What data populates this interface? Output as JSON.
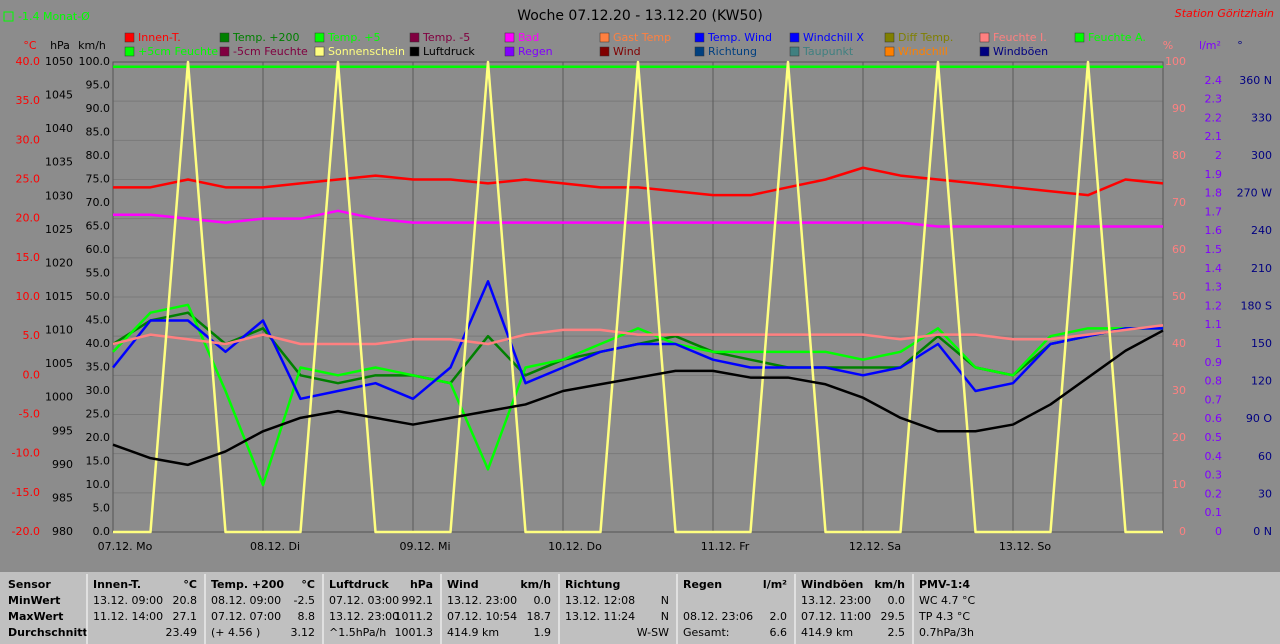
{
  "chart_data": {
    "type": "line",
    "title": "Woche 07.12.20 - 13.12.20 (KW50)",
    "subtitle": "-1.4 Monat-Ø",
    "station": "Station Göritzhain",
    "x": [
      0,
      6,
      12,
      18,
      24,
      30,
      36,
      42,
      48,
      54,
      60,
      66,
      72,
      78,
      84,
      90,
      96,
      102,
      108,
      114,
      120,
      126,
      132,
      138,
      144,
      150,
      156,
      162,
      168
    ],
    "xlim": [
      0,
      168
    ],
    "xticks": [
      {
        "value": 0,
        "label": "07.12. Mo"
      },
      {
        "value": 24,
        "label": "08.12. Di"
      },
      {
        "value": 48,
        "label": "09.12. Mi"
      },
      {
        "value": 72,
        "label": "10.12. Do"
      },
      {
        "value": 96,
        "label": "11.12. Fr"
      },
      {
        "value": 120,
        "label": "12.12. Sa"
      },
      {
        "value": 144,
        "label": "13.12. So"
      }
    ],
    "grid": true,
    "axes": [
      {
        "label": "°C",
        "color": "#ff0000",
        "lim": [
          -20,
          40
        ],
        "ticks": [
          {
            "value": 40,
            "label": "40.0"
          },
          {
            "value": 35,
            "label": "35.0"
          },
          {
            "value": 30,
            "label": "30.0"
          },
          {
            "value": 25,
            "label": "25.0"
          },
          {
            "value": 20,
            "label": "20.0"
          },
          {
            "value": 15,
            "label": "15.0"
          },
          {
            "value": 10,
            "label": "10.0"
          },
          {
            "value": 5,
            "label": "5.0"
          },
          {
            "value": 0,
            "label": "0.0"
          },
          {
            "value": -5,
            "label": "-5.0"
          },
          {
            "value": -10,
            "label": "-10.0"
          },
          {
            "value": -15,
            "label": "-15.0"
          },
          {
            "value": -20,
            "label": "-20.0"
          }
        ]
      },
      {
        "label": "hPa",
        "color": "#000000",
        "lim": [
          980,
          1050
        ],
        "ticks": [
          1050,
          1045,
          1040,
          1035,
          1030,
          1025,
          1020,
          1015,
          1010,
          1005,
          1000,
          995,
          990,
          985,
          980
        ]
      },
      {
        "label": "km/h",
        "color": "#000000",
        "lim": [
          0,
          100
        ],
        "ticks": [
          {
            "value": 100,
            "label": "100.0"
          },
          {
            "value": 95,
            "label": "95.0"
          },
          {
            "value": 90,
            "label": "90.0"
          },
          {
            "value": 85,
            "label": "85.0"
          },
          {
            "value": 80,
            "label": "80.0"
          },
          {
            "value": 75,
            "label": "75.0"
          },
          {
            "value": 70,
            "label": "70.0"
          },
          {
            "value": 65,
            "label": "65.0"
          },
          {
            "value": 60,
            "label": "60.0"
          },
          {
            "value": 55,
            "label": "55.0"
          },
          {
            "value": 50,
            "label": "50.0"
          },
          {
            "value": 45,
            "label": "45.0"
          },
          {
            "value": 40,
            "label": "40.0"
          },
          {
            "value": 35,
            "label": "35.0"
          },
          {
            "value": 30,
            "label": "30.0"
          },
          {
            "value": 25,
            "label": "25.0"
          },
          {
            "value": 20,
            "label": "20.0"
          },
          {
            "value": 15,
            "label": "15.0"
          },
          {
            "value": 10,
            "label": "10.0"
          },
          {
            "value": 5,
            "label": "5.0"
          },
          {
            "value": 0,
            "label": "0.0"
          }
        ]
      },
      {
        "label": "%",
        "color": "#ff8080",
        "lim": [
          0,
          100
        ],
        "ticks": [
          100,
          90,
          80,
          70,
          60,
          50,
          40,
          30,
          20,
          10,
          0
        ]
      },
      {
        "label": "l/m²",
        "color": "#8000ff",
        "lim": [
          0,
          2.5
        ],
        "ticks": [
          2.4,
          2.3,
          2.2,
          2.1,
          2.0,
          1.9,
          1.8,
          1.7,
          1.6,
          1.5,
          1.4,
          1.3,
          1.2,
          1.1,
          1.0,
          0.9,
          0.8,
          0.7,
          0.6,
          0.5,
          0.4,
          0.3,
          0.2,
          0.1,
          0
        ]
      },
      {
        "label": "°",
        "color": "#000080",
        "lim": [
          0,
          375
        ],
        "ticks": [
          {
            "value": 360,
            "label": "360 N"
          },
          330,
          300,
          {
            "value": 270,
            "label": "270 W"
          },
          240,
          210,
          {
            "value": 180,
            "label": "180 S"
          },
          150,
          120,
          {
            "value": 90,
            "label": "90 O"
          },
          60,
          30,
          {
            "value": 0,
            "label": "0 N"
          }
        ]
      }
    ],
    "series": [
      {
        "name": "Innen-T.",
        "color": "#ff0000",
        "axis": 0,
        "values": [
          24,
          24,
          25,
          24,
          24,
          24.5,
          25,
          25.5,
          25,
          25,
          24.5,
          25,
          24.5,
          24,
          24,
          23.5,
          23,
          23,
          24,
          25,
          26.5,
          25.5,
          25,
          24.5,
          24,
          23.5,
          23,
          25,
          24.5
        ]
      },
      {
        "name": "Temp. +200",
        "color": "#008000",
        "axis": 0,
        "values": [
          4,
          7,
          8,
          4,
          6,
          0,
          -1,
          0,
          0,
          -1,
          5,
          0,
          2,
          3,
          4,
          5,
          3,
          2,
          1,
          1,
          1,
          1,
          5,
          1,
          0,
          4,
          5,
          6,
          6
        ]
      },
      {
        "name": "Temp. +5",
        "color": "#00ff00",
        "axis": 0,
        "values": [
          3,
          8,
          9,
          -2,
          -14,
          1,
          0,
          1,
          0,
          -1,
          -12,
          1,
          2,
          4,
          6,
          4,
          3,
          3,
          3,
          3,
          2,
          3,
          6,
          1,
          0,
          5,
          6,
          6,
          6
        ]
      },
      {
        "name": "Temp. -5",
        "color": "#800040",
        "axis": 0
      },
      {
        "name": "Bad",
        "color": "#ff00ff",
        "axis": 0,
        "values": [
          20.5,
          20.5,
          20,
          19.5,
          20,
          20,
          21,
          20,
          19.5,
          19.5,
          19.5,
          19.5,
          19.5,
          19.5,
          19.5,
          19.5,
          19.5,
          19.5,
          19.5,
          19.5,
          19.5,
          19.5,
          19,
          19,
          19,
          19,
          19,
          19,
          19
        ]
      },
      {
        "name": "Gast Temp",
        "color": "#ff8040",
        "axis": 0
      },
      {
        "name": "Temp. Wind",
        "color": "#0000ff",
        "axis": 0,
        "values": [
          1,
          7,
          7,
          3,
          7,
          -3,
          -2,
          -1,
          -3,
          1,
          12,
          -1,
          1,
          3,
          4,
          4,
          2,
          1,
          1,
          1,
          0,
          1,
          4,
          -2,
          -1,
          4,
          5,
          6,
          6
        ]
      },
      {
        "name": "Windchill X",
        "color": "#0000ff",
        "axis": 0
      },
      {
        "name": "Diff Temp.",
        "color": "#808000",
        "axis": 0
      },
      {
        "name": "Feuchte I.",
        "color": "#ff8080",
        "axis": 3,
        "values": [
          40,
          42,
          41,
          40,
          42,
          40,
          40,
          40,
          41,
          41,
          40,
          42,
          43,
          43,
          42,
          42,
          42,
          42,
          42,
          42,
          42,
          41,
          42,
          42,
          41,
          41,
          42,
          43,
          44
        ]
      },
      {
        "name": "Feuchte A.",
        "color": "#00ff00",
        "axis": 3,
        "values": [
          99,
          99,
          99,
          99,
          99,
          99,
          99,
          99,
          99,
          99,
          99,
          99,
          99,
          99,
          99,
          99,
          99,
          99,
          99,
          99,
          99,
          99,
          99,
          99,
          99,
          99,
          99,
          99,
          99
        ]
      },
      {
        "name": "+5cm Feuchte",
        "color": "#00ff00",
        "axis": 3
      },
      {
        "name": "-5cm Feuchte",
        "color": "#800040",
        "axis": 3
      },
      {
        "name": "Sonnenschein",
        "color": "#ffff80",
        "axis": 3,
        "values": [
          0,
          0,
          100,
          0,
          0,
          0,
          100,
          0,
          0,
          0,
          100,
          0,
          0,
          0,
          100,
          0,
          0,
          0,
          100,
          0,
          0,
          0,
          100,
          0,
          0,
          0,
          100,
          0,
          0
        ]
      },
      {
        "name": "Luftdruck",
        "color": "#000000",
        "axis": 1,
        "values": [
          993,
          991,
          990,
          992,
          995,
          997,
          998,
          997,
          996,
          997,
          998,
          999,
          1001,
          1002,
          1003,
          1004,
          1004,
          1003,
          1003,
          1002,
          1000,
          997,
          995,
          995,
          996,
          999,
          1003,
          1007,
          1010
        ]
      },
      {
        "name": "Regen",
        "color": "#8000ff",
        "axis": 4
      },
      {
        "name": "Wind",
        "color": "#800000",
        "axis": 2
      },
      {
        "name": "Richtung",
        "color": "#004080",
        "axis": 5
      },
      {
        "name": "Taupunkt",
        "color": "#408080",
        "axis": 0
      },
      {
        "name": "Windchill",
        "color": "#ff8000",
        "axis": 0
      },
      {
        "name": "Windböen",
        "color": "#000080",
        "axis": 2
      }
    ]
  },
  "table": {
    "row_labels": [
      "Sensor",
      "MinWert",
      "MaxWert",
      "Durchschnitt"
    ],
    "columns": [
      {
        "title": "Innen-T.",
        "unit": "°C",
        "rows": [
          [
            "13.12.  09:00",
            "20.8"
          ],
          [
            "11.12.  14:00",
            "27.1"
          ],
          [
            "23.49"
          ]
        ]
      },
      {
        "title": "Temp. +200",
        "unit": "°C",
        "rows": [
          [
            "08.12.  09:00",
            "-2.5"
          ],
          [
            "07.12.  07:00",
            "8.8"
          ],
          [
            "(+ 4.56 )",
            "3.12"
          ]
        ]
      },
      {
        "title": "Luftdruck",
        "unit": "hPa",
        "rows": [
          [
            "07.12.  03:00",
            "992.1"
          ],
          [
            "13.12.  23:00",
            "1011.2"
          ],
          [
            "^1.5hPa/h",
            "1001.3"
          ]
        ]
      },
      {
        "title": "Wind",
        "unit": "km/h",
        "rows": [
          [
            "13.12.  23:00",
            "0.0"
          ],
          [
            "07.12.  10:54",
            "18.7"
          ],
          [
            "414.9 km",
            "1.9"
          ]
        ]
      },
      {
        "title": "Richtung",
        "rows": [
          [
            "13.12.  12:08",
            "N"
          ],
          [
            "13.12.  11:24",
            "N"
          ],
          [
            "W-SW"
          ]
        ]
      },
      {
        "title": "Regen",
        "unit": "l/m²",
        "rows": [
          [],
          [
            "08.12.  23:06",
            "2.0"
          ],
          [
            "Gesamt:",
            "6.6"
          ]
        ]
      },
      {
        "title": "Windböen",
        "unit": "km/h",
        "rows": [
          [
            "13.12.  23:00",
            "0.0"
          ],
          [
            "07.12.  11:00",
            "29.5"
          ],
          [
            "414.9 km",
            "2.5"
          ]
        ]
      },
      {
        "title": "PMV-1:4",
        "rows": [
          [
            "WC 4.7 °C"
          ],
          [
            "TP 4.3 °C"
          ],
          [
            "0.7hPa/3h"
          ]
        ]
      }
    ]
  }
}
